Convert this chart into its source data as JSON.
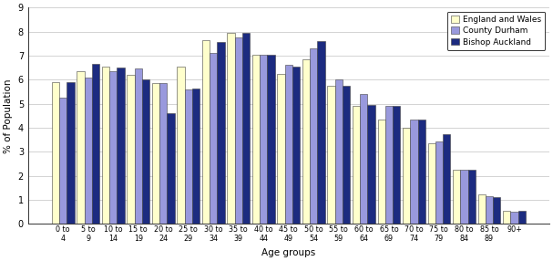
{
  "age_groups": [
    "0 to\n4",
    "5 to\n9",
    "10 to\n14",
    "15 to\n19",
    "20 to\n24",
    "25 to\n29",
    "30 to\n34",
    "35 to\n39",
    "40 to\n44",
    "45 to\n49",
    "50 to\n54",
    "55 to\n59",
    "60 to\n64",
    "65 to\n69",
    "70 to\n74",
    "75 to\n79",
    "80 to\n84",
    "85 to\n89",
    "90+"
  ],
  "england_wales": [
    5.9,
    6.35,
    6.55,
    6.2,
    5.85,
    6.55,
    7.65,
    7.95,
    7.05,
    6.25,
    6.85,
    5.75,
    4.9,
    4.35,
    4.0,
    3.35,
    2.25,
    1.25,
    0.55
  ],
  "county_durham": [
    5.25,
    6.1,
    6.35,
    6.45,
    5.85,
    5.6,
    7.1,
    7.75,
    7.05,
    6.6,
    7.3,
    6.0,
    5.4,
    4.9,
    4.35,
    3.45,
    2.25,
    1.15,
    0.5
  ],
  "bishop_auckland": [
    5.9,
    6.65,
    6.5,
    6.0,
    4.6,
    5.65,
    7.55,
    7.95,
    7.05,
    6.55,
    7.6,
    5.75,
    4.95,
    4.9,
    4.35,
    3.75,
    2.25,
    1.1,
    0.55
  ],
  "colors": {
    "england_wales": "#ffffcc",
    "county_durham": "#9999dd",
    "bishop_auckland": "#1c2b80"
  },
  "edge_color": "#444444",
  "ylabel": "% of Population",
  "xlabel": "Age groups",
  "ylim": [
    0,
    9
  ],
  "yticks": [
    0,
    1,
    2,
    3,
    4,
    5,
    6,
    7,
    8,
    9
  ],
  "legend_labels": [
    "England and Wales",
    "County Durham",
    "Bishop Auckland"
  ],
  "background_color": "#ffffff",
  "grid_color": "#cccccc"
}
